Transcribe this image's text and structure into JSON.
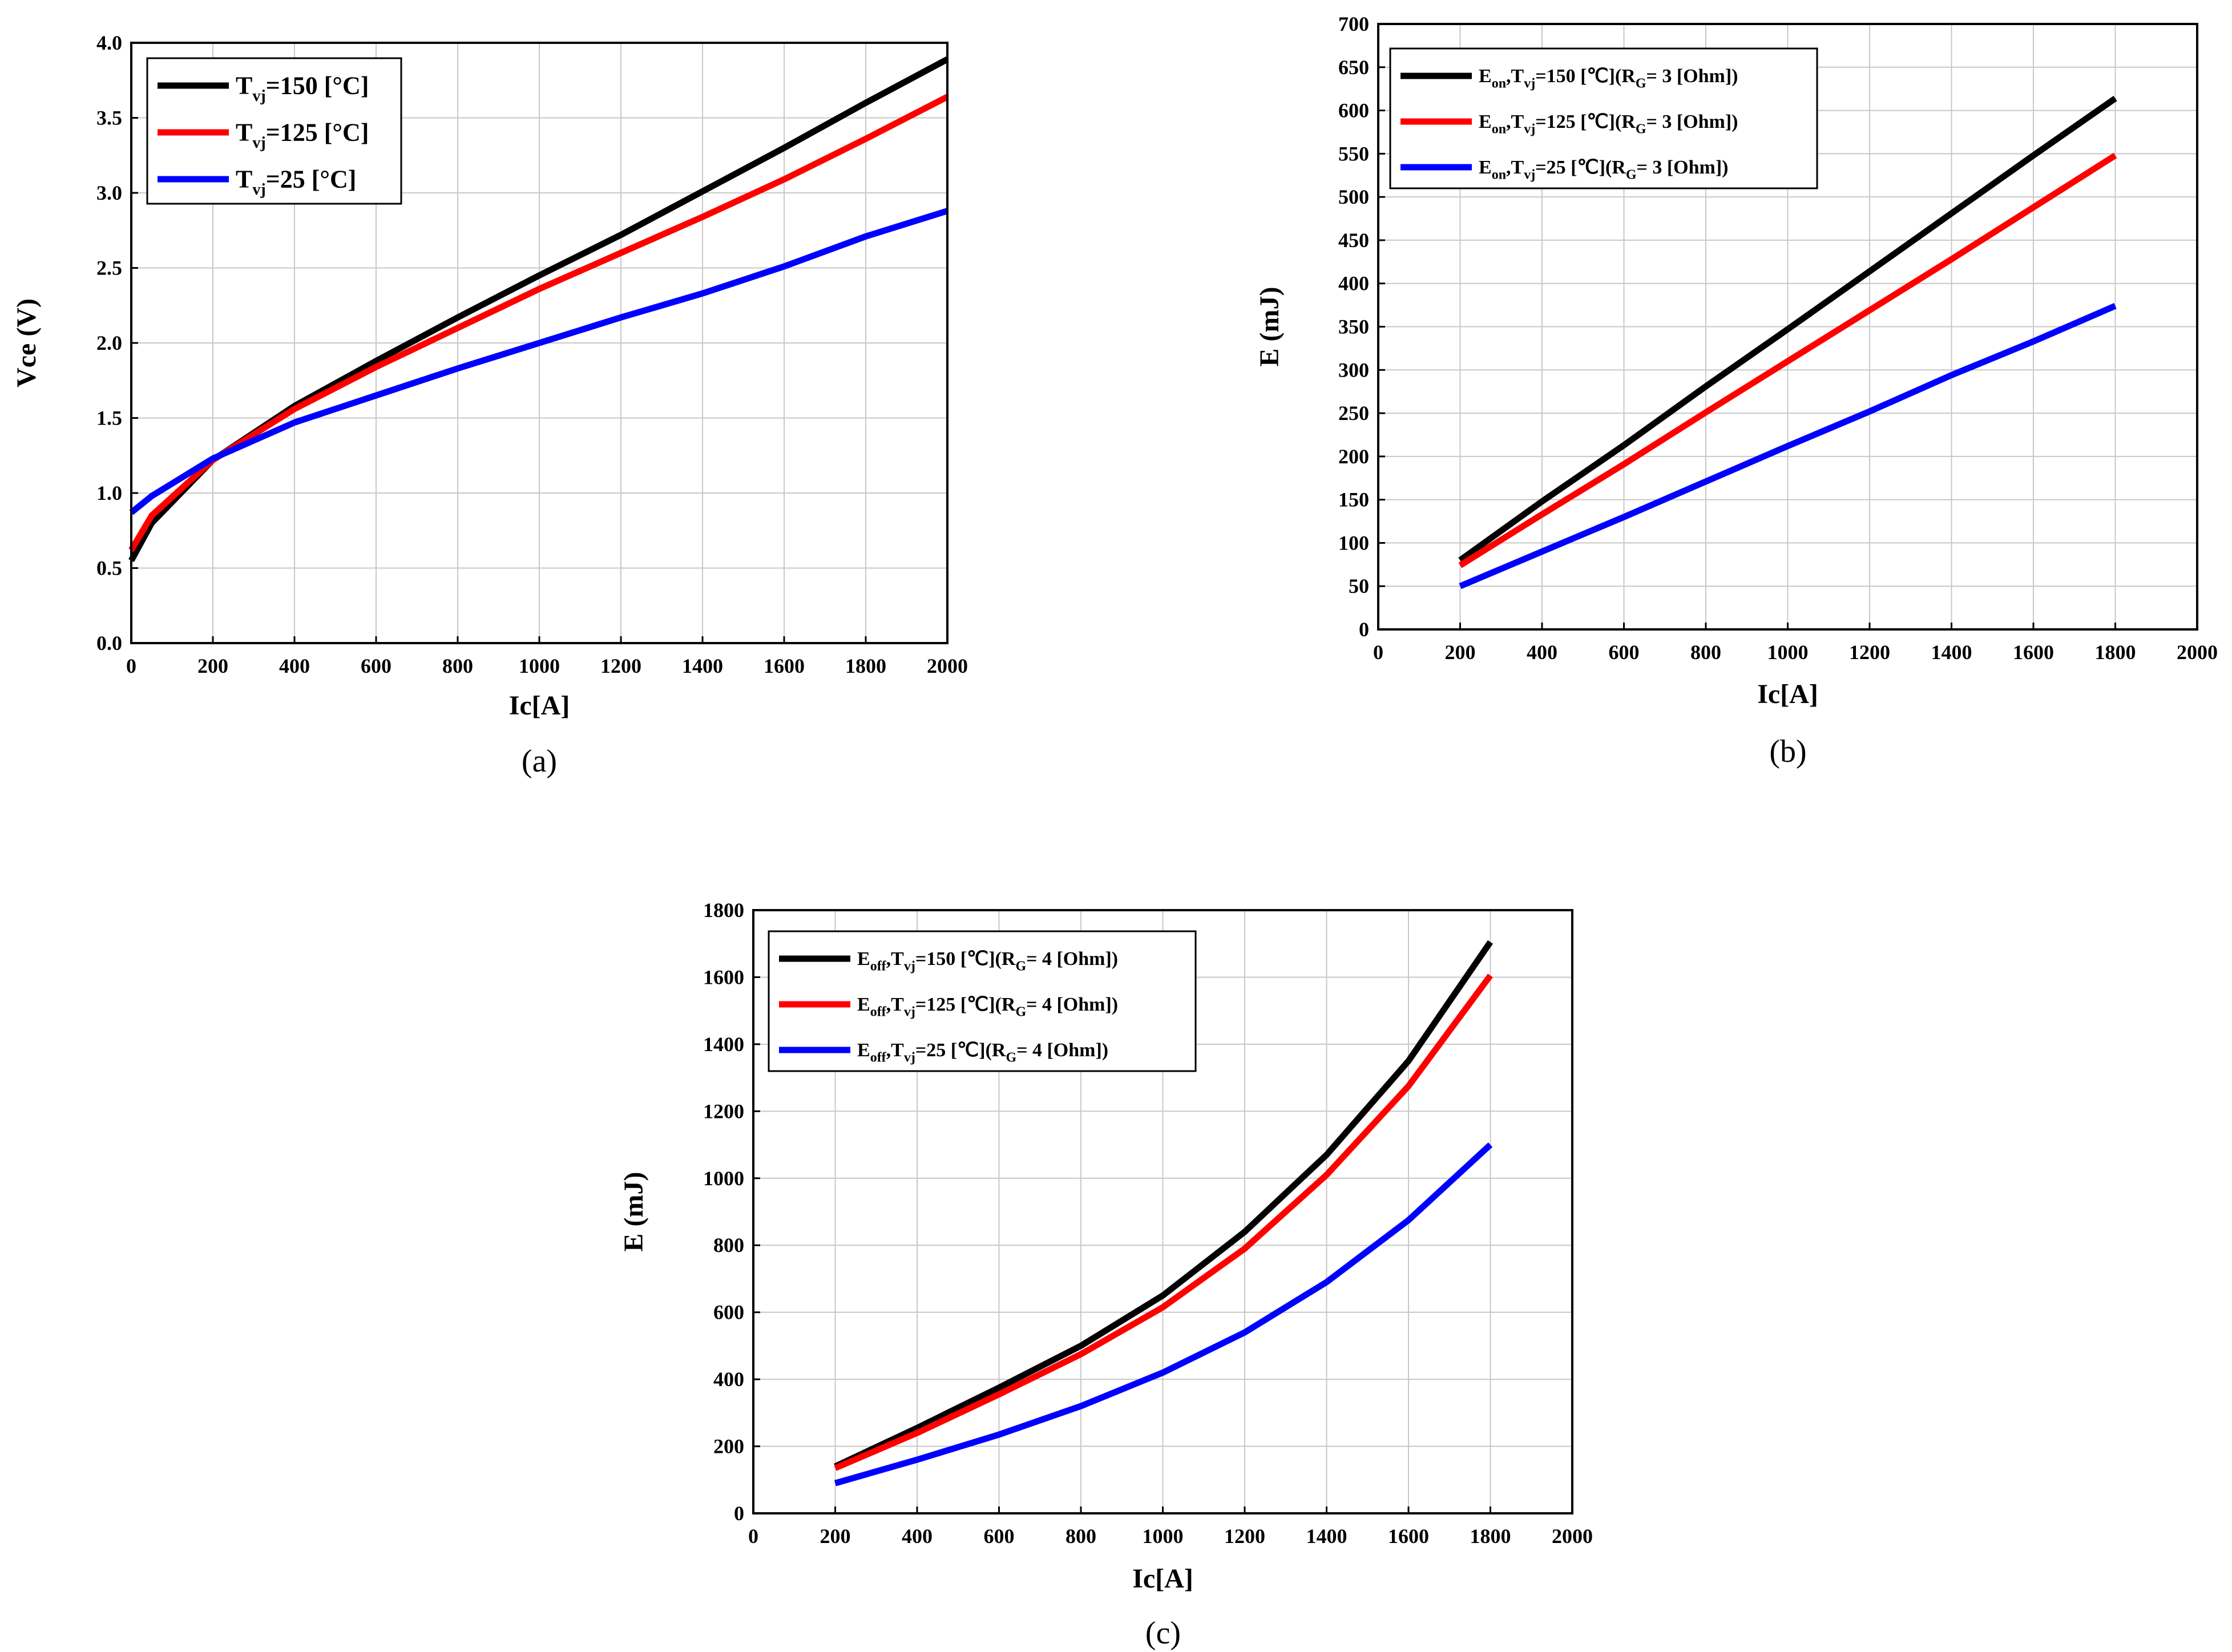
{
  "chart_data": [
    {
      "id": "a",
      "type": "line",
      "caption": "(a)",
      "xlabel": "Ic[A]",
      "ylabel": "Vce (V)",
      "xlim": [
        0,
        2000
      ],
      "ylim": [
        0.0,
        4.0
      ],
      "xticks": [
        "0",
        "200",
        "400",
        "600",
        "800",
        "1000",
        "1200",
        "1400",
        "1600",
        "1800",
        "2000"
      ],
      "yticks": [
        "0.0",
        "0.5",
        "1.0",
        "1.5",
        "2.0",
        "2.5",
        "3.0",
        "3.5",
        "4.0"
      ],
      "legend_position": "top-left",
      "series": [
        {
          "name": "T_vj=150 [°C]",
          "legend_main": "T",
          "legend_sub": "vj",
          "legend_rest": "=150 [°C]",
          "color": "#000000",
          "x": [
            0,
            50,
            200,
            400,
            600,
            800,
            1000,
            1200,
            1400,
            1600,
            1800,
            2000
          ],
          "y": [
            0.55,
            0.8,
            1.22,
            1.58,
            1.88,
            2.17,
            2.45,
            2.72,
            3.01,
            3.3,
            3.6,
            3.89
          ]
        },
        {
          "name": "T_vj=125 [°C]",
          "legend_main": "T",
          "legend_sub": "vj",
          "legend_rest": "=125 [°C]",
          "color": "#ff0000",
          "x": [
            0,
            50,
            200,
            400,
            600,
            800,
            1000,
            1200,
            1400,
            1600,
            1800,
            2000
          ],
          "y": [
            0.62,
            0.85,
            1.22,
            1.56,
            1.84,
            2.1,
            2.36,
            2.6,
            2.84,
            3.09,
            3.36,
            3.64
          ]
        },
        {
          "name": "T_vj=25   [°C]",
          "legend_main": "T",
          "legend_sub": "vj",
          "legend_rest": "=25   [°C]",
          "color": "#0000ff",
          "x": [
            0,
            50,
            200,
            400,
            600,
            800,
            1000,
            1200,
            1400,
            1600,
            1800,
            2000
          ],
          "y": [
            0.87,
            0.98,
            1.23,
            1.47,
            1.65,
            1.83,
            2.0,
            2.17,
            2.33,
            2.51,
            2.71,
            2.88
          ]
        }
      ]
    },
    {
      "id": "b",
      "type": "line",
      "caption": "(b)",
      "xlabel": "Ic[A]",
      "ylabel": "E (mJ)",
      "xlim": [
        0,
        2000
      ],
      "ylim": [
        0,
        700
      ],
      "xticks": [
        "0",
        "200",
        "400",
        "600",
        "800",
        "1000",
        "1200",
        "1400",
        "1600",
        "1800",
        "2000"
      ],
      "yticks": [
        "0",
        "50",
        "100",
        "150",
        "200",
        "250",
        "300",
        "350",
        "400",
        "450",
        "500",
        "550",
        "600",
        "650",
        "700"
      ],
      "legend_position": "top-left",
      "series": [
        {
          "name": "E_on,T_vj=150 [℃](R_G= 3 [Ohm])",
          "legend_parts": [
            "E",
            "on",
            ",T",
            "vj",
            "=150 [℃](R",
            "G",
            "= 3 [Ohm])"
          ],
          "color": "#000000",
          "x": [
            200,
            400,
            600,
            800,
            1000,
            1200,
            1400,
            1600,
            1800
          ],
          "y": [
            80,
            148,
            213,
            281,
            347,
            414,
            481,
            548,
            614
          ]
        },
        {
          "name": "E_on,T_vj=125 [℃](R_G= 3 [Ohm])",
          "legend_parts": [
            "E",
            "on",
            ",T",
            "vj",
            "=125 [℃](R",
            "G",
            "= 3 [Ohm])"
          ],
          "color": "#ff0000",
          "x": [
            200,
            400,
            600,
            800,
            1000,
            1200,
            1400,
            1600,
            1800
          ],
          "y": [
            74,
            133,
            191,
            251,
            310,
            369,
            428,
            488,
            548
          ]
        },
        {
          "name": "E_on,T_vj=25   [℃](R_G= 3 [Ohm])",
          "legend_parts": [
            "E",
            "on",
            ",T",
            "vj",
            "=25   [℃](R",
            "G",
            "= 3 [Ohm])"
          ],
          "color": "#0000ff",
          "x": [
            200,
            400,
            600,
            800,
            1000,
            1200,
            1400,
            1600,
            1800
          ],
          "y": [
            50,
            90,
            130,
            171,
            212,
            252,
            294,
            333,
            374
          ]
        }
      ]
    },
    {
      "id": "c",
      "type": "line",
      "caption": "(c)",
      "xlabel": "Ic[A]",
      "ylabel": "E (mJ)",
      "xlim": [
        0,
        2000
      ],
      "ylim": [
        0,
        1800
      ],
      "xticks": [
        "0",
        "200",
        "400",
        "600",
        "800",
        "1000",
        "1200",
        "1400",
        "1600",
        "1800",
        "2000"
      ],
      "yticks": [
        "0",
        "200",
        "400",
        "600",
        "800",
        "1000",
        "1200",
        "1400",
        "1600",
        "1800"
      ],
      "legend_position": "top-left",
      "series": [
        {
          "name": "E_off,T_vj=150 [℃](R_G= 4 [Ohm])",
          "legend_parts": [
            "E",
            "off",
            ",T",
            "vj",
            "=150 [℃](R",
            "G",
            "= 4 [Ohm])"
          ],
          "color": "#000000",
          "x": [
            200,
            400,
            600,
            800,
            1000,
            1200,
            1400,
            1600,
            1800
          ],
          "y": [
            140,
            255,
            375,
            500,
            650,
            840,
            1070,
            1350,
            1705
          ]
        },
        {
          "name": "E_off,T_vj=125 [℃](R_G= 4 [Ohm])",
          "legend_parts": [
            "E",
            "off",
            ",T",
            "vj",
            "=125 [℃](R",
            "G",
            "= 4 [Ohm])"
          ],
          "color": "#ff0000",
          "x": [
            200,
            400,
            600,
            800,
            1000,
            1200,
            1400,
            1600,
            1800
          ],
          "y": [
            135,
            240,
            355,
            475,
            615,
            790,
            1010,
            1275,
            1605
          ]
        },
        {
          "name": "E_off,T_vj=25   [℃](R_G= 4 [Ohm])",
          "legend_parts": [
            "E",
            "off",
            ",T",
            "vj",
            "=25   [℃](R",
            "G",
            "= 4 [Ohm])"
          ],
          "color": "#0000ff",
          "x": [
            200,
            400,
            600,
            800,
            1000,
            1200,
            1400,
            1600,
            1800
          ],
          "y": [
            90,
            160,
            235,
            320,
            420,
            540,
            690,
            875,
            1100
          ]
        }
      ]
    }
  ]
}
